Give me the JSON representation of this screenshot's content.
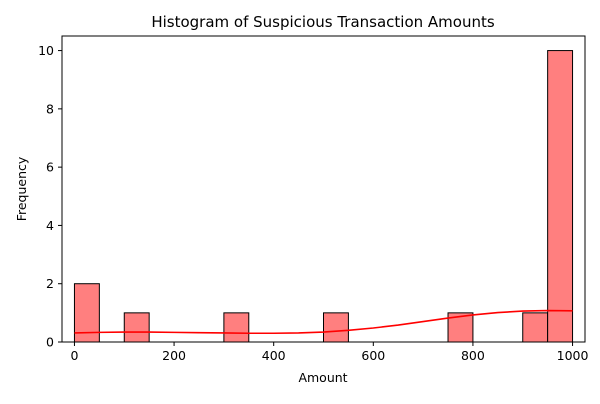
{
  "chart_data": {
    "type": "bar",
    "title": "Histogram of Suspicious Transaction Amounts",
    "xlabel": "Amount",
    "ylabel": "Frequency",
    "xlim": [
      -25,
      1025
    ],
    "ylim": [
      0,
      10.5
    ],
    "xticks": [
      0,
      200,
      400,
      600,
      800,
      1000
    ],
    "yticks": [
      0,
      2,
      4,
      6,
      8,
      10
    ],
    "bin_width": 50,
    "bins": [
      {
        "x0": 0,
        "x1": 50,
        "count": 2
      },
      {
        "x0": 100,
        "x1": 150,
        "count": 1
      },
      {
        "x0": 300,
        "x1": 350,
        "count": 1
      },
      {
        "x0": 500,
        "x1": 550,
        "count": 1
      },
      {
        "x0": 750,
        "x1": 800,
        "count": 1
      },
      {
        "x0": 900,
        "x1": 950,
        "count": 1
      },
      {
        "x0": 950,
        "x1": 1000,
        "count": 10
      }
    ],
    "kde": {
      "x": [
        0,
        50,
        100,
        150,
        200,
        250,
        300,
        350,
        400,
        450,
        500,
        550,
        600,
        650,
        700,
        750,
        800,
        850,
        900,
        950,
        1000
      ],
      "y": [
        0.31,
        0.33,
        0.34,
        0.34,
        0.33,
        0.32,
        0.31,
        0.3,
        0.3,
        0.31,
        0.34,
        0.4,
        0.48,
        0.58,
        0.7,
        0.82,
        0.93,
        1.01,
        1.06,
        1.08,
        1.07
      ]
    },
    "bar_color": "#ff7f7f",
    "kde_color": "#ff0000",
    "grid": false,
    "legend": "none"
  }
}
